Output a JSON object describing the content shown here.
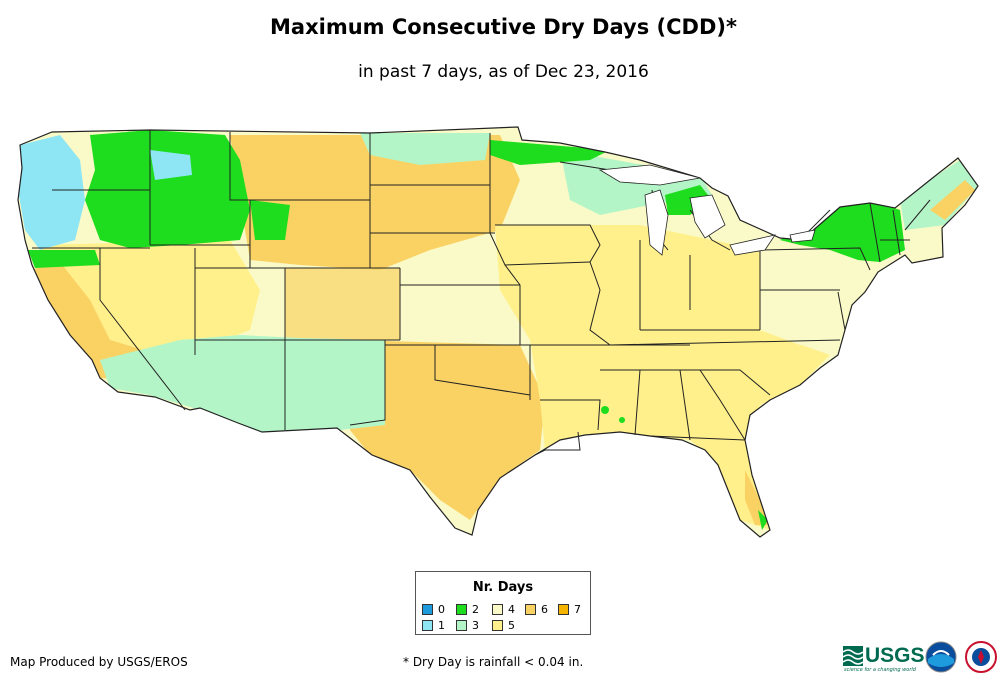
{
  "title": "Maximum Consecutive Dry Days (CDD)*",
  "subtitle": "in past 7 days, as of Dec 23, 2016",
  "legend": {
    "title": "Nr. Days",
    "items": [
      {
        "label": "0",
        "color": "#1e9bdc"
      },
      {
        "label": "1",
        "color": "#8ee6f5"
      },
      {
        "label": "2",
        "color": "#1edc1e"
      },
      {
        "label": "3",
        "color": "#b4f5c8"
      },
      {
        "label": "4",
        "color": "#fafac8"
      },
      {
        "label": "5",
        "color": "#fff08c"
      },
      {
        "label": "6",
        "color": "#fad264"
      },
      {
        "label": "7",
        "color": "#f5b400"
      }
    ]
  },
  "credit": "Map Produced by USGS/EROS",
  "footnote": "* Dry Day is rainfall < 0.04 in.",
  "logos": {
    "usgs": "USGS",
    "usgs_tagline": "science for a changing world",
    "noaa": "noaa-logo",
    "nws": "national-weather-service-logo"
  },
  "map": {
    "region": "Contiguous United States",
    "regions": [
      {
        "name": "pacific-northwest-coast",
        "value": 1
      },
      {
        "name": "northern-rockies",
        "value": 2
      },
      {
        "name": "great-basin",
        "value": 5
      },
      {
        "name": "california",
        "value": 5
      },
      {
        "name": "southwest-desert",
        "value": 3
      },
      {
        "name": "northern-plains",
        "value": 6
      },
      {
        "name": "southern-plains",
        "value": 6
      },
      {
        "name": "midwest",
        "value": 5
      },
      {
        "name": "southeast",
        "value": 5
      },
      {
        "name": "great-lakes-lee",
        "value": 3
      },
      {
        "name": "new-york-new-england",
        "value": 2
      },
      {
        "name": "mid-atlantic",
        "value": 4
      },
      {
        "name": "florida",
        "value": 5
      }
    ]
  }
}
